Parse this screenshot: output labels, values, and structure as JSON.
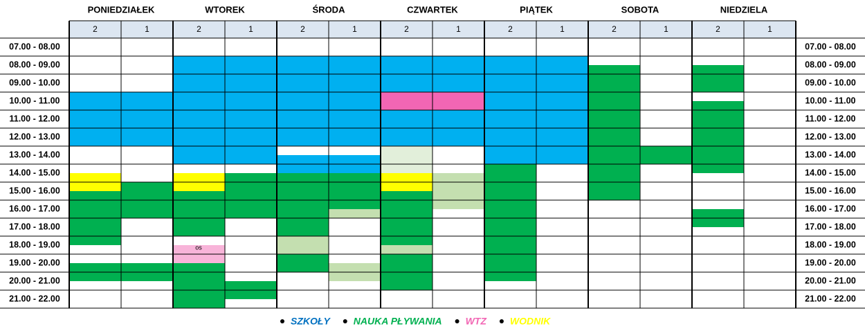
{
  "header": {
    "days": [
      {
        "name": "PONIEDZIAŁEK",
        "lanes": [
          "2",
          "1"
        ]
      },
      {
        "name": "WTOREK",
        "lanes": [
          "2",
          "1"
        ]
      },
      {
        "name": "ŚRODA",
        "lanes": [
          "2",
          "1"
        ]
      },
      {
        "name": "CZWARTEK",
        "lanes": [
          "2",
          "1"
        ]
      },
      {
        "name": "PIĄTEK",
        "lanes": [
          "2",
          "1"
        ]
      },
      {
        "name": "SOBOTA",
        "lanes": [
          "2",
          "1"
        ]
      },
      {
        "name": "NIEDZIELA",
        "lanes": [
          "2",
          "1"
        ]
      }
    ]
  },
  "times": [
    "07.00 - 08.00",
    "08.00 - 09.00",
    "09.00 - 10.00",
    "10.00 - 11.00",
    "11.00 - 12.00",
    "12.00 - 13.00",
    "13.00 - 14.00",
    "14.00 - 15.00",
    "15.00 - 16.00",
    "16.00 - 17.00",
    "17.00 - 18.00",
    "18.00 - 19.00",
    "19.00 - 20.00",
    "20.00 - 21.00",
    "21.00 - 22.00"
  ],
  "note": "os",
  "legend": [
    {
      "label": "SZKOŁY",
      "color": "#0070c0"
    },
    {
      "label": "NAUKA PŁYWANIA",
      "color": "#00b050"
    },
    {
      "label": "WTZ",
      "color": "#f266b4"
    },
    {
      "label": "WODNIK",
      "color": "#ffff00"
    }
  ]
}
